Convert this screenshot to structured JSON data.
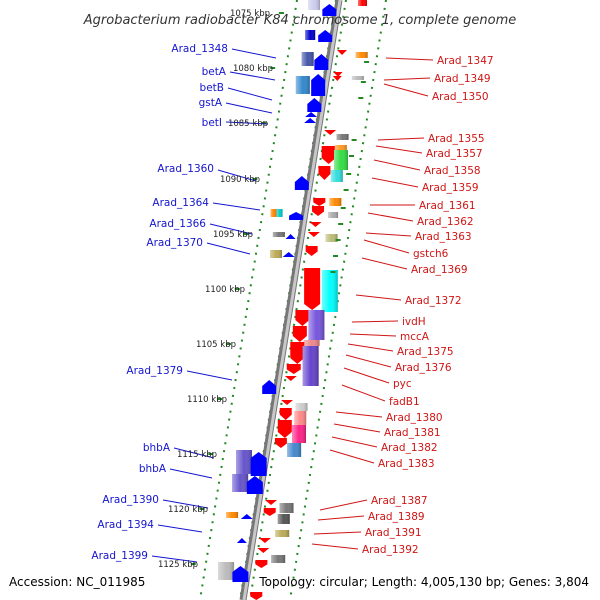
{
  "title": "Agrobacterium radiobacter K84 chromosome 1, complete genome",
  "footer": {
    "accession": "Accession: NC_011985",
    "summary": "Topology: circular; Length: 4,005,130 bp; Genes: 3,804"
  },
  "kbp_ticks": [
    "1075 kbp",
    "1080 kbp",
    "1085 kbp",
    "1090 kbp",
    "1095 kbp",
    "1100 kbp",
    "1105 kbp",
    "1110 kbp",
    "1115 kbp",
    "1120 kbp",
    "1125 kbp"
  ],
  "left_labels": [
    "Arad_1348",
    "betA",
    "betB",
    "gstA",
    "betI",
    "Arad_1360",
    "Arad_1364",
    "Arad_1366",
    "Arad_1370",
    "Arad_1379",
    "bhbA",
    "bhbA",
    "Arad_1390",
    "Arad_1394",
    "Arad_1399"
  ],
  "right_labels": [
    "Arad_1347",
    "Arad_1349",
    "Arad_1350",
    "Arad_1355",
    "Arad_1357",
    "Arad_1358",
    "Arad_1359",
    "Arad_1361",
    "Arad_1362",
    "Arad_1363",
    "gstch6",
    "Arad_1369",
    "Arad_1372",
    "ivdH",
    "mccA",
    "Arad_1375",
    "Arad_1376",
    "pyc",
    "fadB1",
    "Arad_1380",
    "Arad_1381",
    "Arad_1382",
    "Arad_1383",
    "Arad_1387",
    "Arad_1389",
    "Arad_1391",
    "Arad_1392"
  ],
  "colors": {
    "forward_strand": "#ff0000",
    "reverse_strand": "#0000ff",
    "left_label": "#1515d0",
    "right_label": "#d01515",
    "backbone": "#999999",
    "frame_dots": "#228822"
  }
}
